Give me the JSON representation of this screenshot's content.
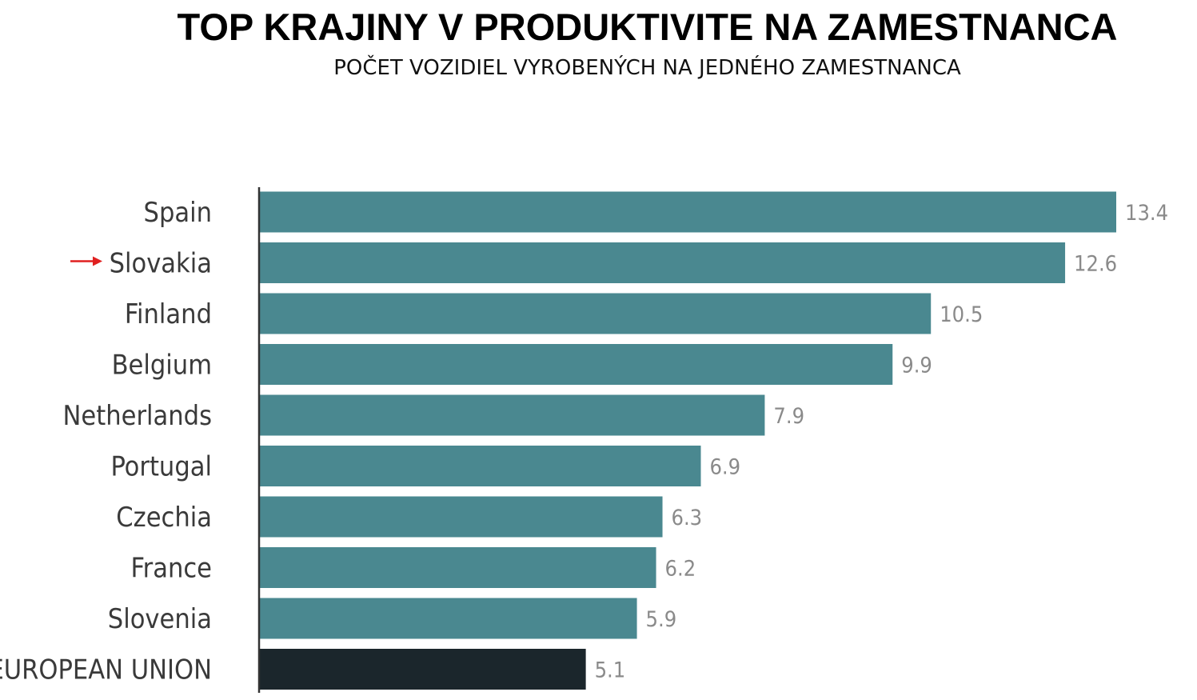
{
  "chart_data": {
    "type": "bar",
    "orientation": "horizontal",
    "title": "TOP KRAJINY V PRODUKTIVITE NA ZAMESTNANCA",
    "subtitle": "POČET VOZIDIEL VYROBENÝCH NA JEDNÉHO ZAMESTNANCA",
    "categories": [
      "Spain",
      "Slovakia",
      "Finland",
      "Belgium",
      "Netherlands",
      "Portugal",
      "Czechia",
      "France",
      "Slovenia",
      "EUROPEAN UNION"
    ],
    "values": [
      13.4,
      12.6,
      10.5,
      9.9,
      7.9,
      6.9,
      6.3,
      6.2,
      5.9,
      5.1
    ],
    "value_labels": [
      "13.4",
      "12.6",
      "10.5",
      "9.9",
      "7.9",
      "6.9",
      "6.3",
      "6.2",
      "5.9",
      "5.1"
    ],
    "highlighted_category": "Slovakia",
    "xlim": [
      0,
      13.4
    ],
    "grid": false,
    "colors": {
      "bar": "#4a8890",
      "bar_highlight": "#1b262c",
      "arrow": "#e02020",
      "axis": "#333333"
    }
  }
}
